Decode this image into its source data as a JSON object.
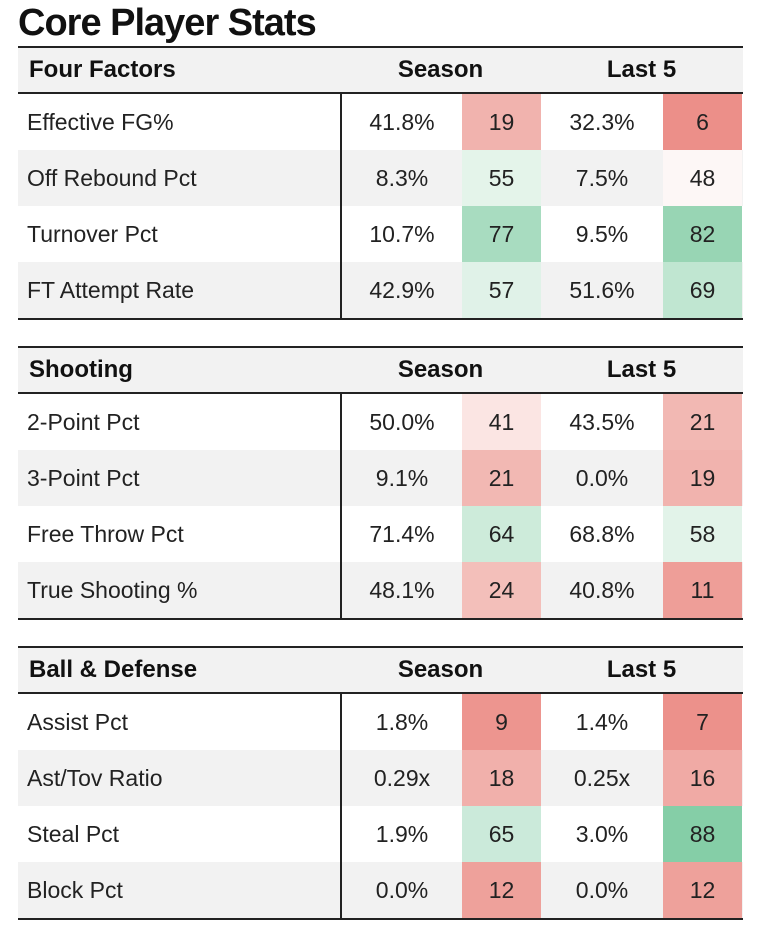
{
  "title": "Core Player Stats",
  "columns": {
    "season": "Season",
    "last5": "Last 5"
  },
  "sections": [
    {
      "name": "Four Factors",
      "rows": [
        {
          "label": "Effective FG%",
          "season": "41.8%",
          "season_rank": "19",
          "season_color": "#f1b3ae",
          "last5": "32.3%",
          "last5_rank": "6",
          "last5_color": "#ec8f89"
        },
        {
          "label": "Off Rebound Pct",
          "season": "8.3%",
          "season_rank": "55",
          "season_color": "#e4f4ea",
          "last5": "7.5%",
          "last5_rank": "48",
          "last5_color": "#fdf7f6"
        },
        {
          "label": "Turnover Pct",
          "season": "10.7%",
          "season_rank": "77",
          "season_color": "#a8dcc0",
          "last5": "9.5%",
          "last5_rank": "82",
          "last5_color": "#98d5b4"
        },
        {
          "label": "FT Attempt Rate",
          "season": "42.9%",
          "season_rank": "57",
          "season_color": "#e0f2e8",
          "last5": "51.6%",
          "last5_rank": "69",
          "last5_color": "#c0e6d1"
        }
      ]
    },
    {
      "name": "Shooting",
      "rows": [
        {
          "label": "2-Point Pct",
          "season": "50.0%",
          "season_rank": "41",
          "season_color": "#fbe5e3",
          "last5": "43.5%",
          "last5_rank": "21",
          "last5_color": "#f2b8b3"
        },
        {
          "label": "3-Point Pct",
          "season": "9.1%",
          "season_rank": "21",
          "season_color": "#f2b8b3",
          "last5": "0.0%",
          "last5_rank": "19",
          "last5_color": "#f1b3ae"
        },
        {
          "label": "Free Throw Pct",
          "season": "71.4%",
          "season_rank": "64",
          "season_color": "#cdebda",
          "last5": "68.8%",
          "last5_rank": "58",
          "last5_color": "#e2f3e9"
        },
        {
          "label": "True Shooting %",
          "season": "48.1%",
          "season_rank": "24",
          "season_color": "#f3bfba",
          "last5": "40.8%",
          "last5_rank": "11",
          "last5_color": "#ee9e98"
        }
      ]
    },
    {
      "name": "Ball & Defense",
      "rows": [
        {
          "label": "Assist Pct",
          "season": "1.8%",
          "season_rank": "9",
          "season_color": "#ed958f",
          "last5": "1.4%",
          "last5_rank": "7",
          "last5_color": "#ec918b"
        },
        {
          "label": "Ast/Tov Ratio",
          "season": "0.29x",
          "season_rank": "18",
          "season_color": "#f1b0ab",
          "last5": "0.25x",
          "last5_rank": "16",
          "last5_color": "#f0aaa5"
        },
        {
          "label": "Steal Pct",
          "season": "1.9%",
          "season_rank": "65",
          "season_color": "#cbeada",
          "last5": "3.0%",
          "last5_rank": "88",
          "last5_color": "#85cea7"
        },
        {
          "label": "Block Pct",
          "season": "0.0%",
          "season_rank": "12",
          "season_color": "#eea19b",
          "last5": "0.0%",
          "last5_rank": "12",
          "last5_color": "#eea19b"
        }
      ]
    }
  ]
}
